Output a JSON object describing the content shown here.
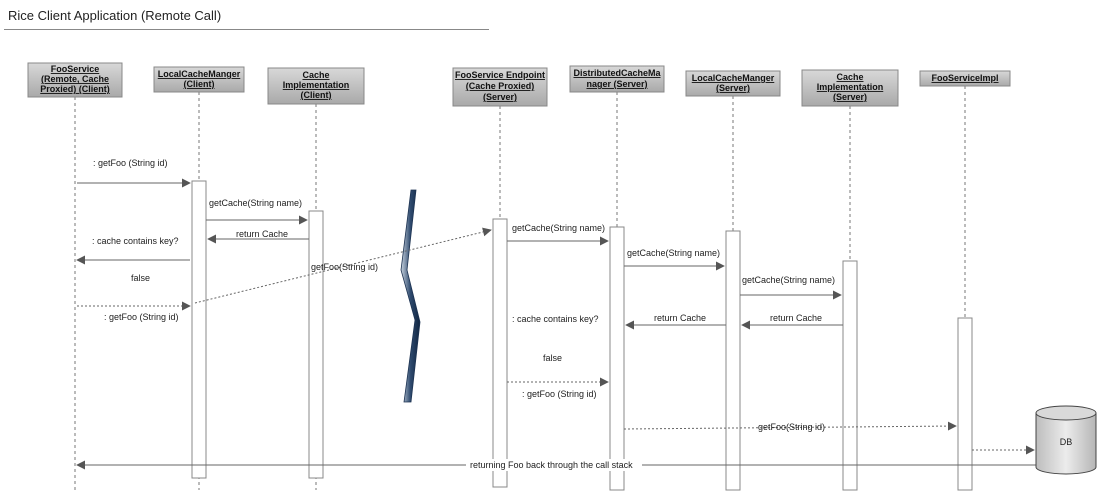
{
  "diagram": {
    "title": "Rice Client Application (Remote Call)",
    "participants": [
      {
        "id": "p1",
        "lines": [
          "FooService",
          "(Remote, Cache",
          "Proxied) (Client)"
        ]
      },
      {
        "id": "p2",
        "lines": [
          "LocalCacheManger",
          "(Client)"
        ]
      },
      {
        "id": "p3",
        "lines": [
          "Cache",
          "Implementation",
          "(Client)"
        ]
      },
      {
        "id": "p4",
        "lines": [
          "FooService Endpoint",
          "(Cache Proxied)",
          "(Server)"
        ]
      },
      {
        "id": "p5",
        "lines": [
          "DistributedCacheMa",
          "nager (Server)"
        ]
      },
      {
        "id": "p6",
        "lines": [
          "LocalCacheManger",
          "(Server)"
        ]
      },
      {
        "id": "p7",
        "lines": [
          "Cache",
          "Implementation",
          "(Server)"
        ]
      },
      {
        "id": "p8",
        "lines": [
          "FooServiceImpl"
        ]
      }
    ],
    "messages": {
      "m1": ": getFoo (String id)",
      "m2": "getCache(String name)",
      "m3": "return Cache",
      "m4": ": cache contains key?",
      "m5": "false",
      "m6": "getFoo(String id)",
      "m7": ": getFoo (String id)",
      "m8": "getCache(String name)",
      "m9": "getCache(String name)",
      "m10": "getCache(String name)",
      "m11": ": cache contains key?",
      "m12": "return Cache",
      "m13": "return Cache",
      "m14": "false",
      "m15": ": getFoo (String id)",
      "m16": "getFoo(String id)",
      "m17": "returning Foo back through the call stack"
    },
    "db_label": "DB"
  }
}
